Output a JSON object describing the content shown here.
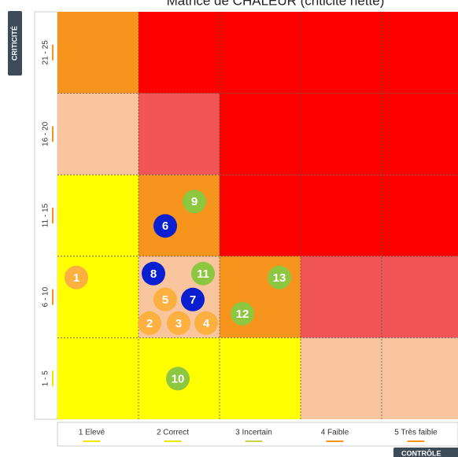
{
  "header": {
    "title": "Matrice de CHALEUR (criticité nette)"
  },
  "y_axis": {
    "title": "CRITICITÉ",
    "labels": [
      {
        "text": "21 - 25",
        "color": "#f7941d"
      },
      {
        "text": "16 - 20",
        "color": "#f7941d"
      },
      {
        "text": "11 - 15",
        "color": "#f7941d"
      },
      {
        "text": "6 - 10",
        "color": "#f7941d"
      },
      {
        "text": "1 - 5",
        "color": "#f2e600"
      }
    ]
  },
  "x_axis": {
    "title": "CONTRÔLE",
    "labels": [
      {
        "text": "1 Elevé",
        "color": "#f2e600"
      },
      {
        "text": "2 Correct",
        "color": "#e6e600"
      },
      {
        "text": "3 Incertain",
        "color": "#c8d44a"
      },
      {
        "text": "4 Faible",
        "color": "#f7941d"
      },
      {
        "text": "5 Très faible",
        "color": "#f7941d"
      }
    ]
  },
  "matrix": {
    "rows": [
      [
        {
          "color": "#f7941d",
          "markers": []
        },
        {
          "color": "#ff0000",
          "markers": []
        },
        {
          "color": "#ff0000",
          "markers": []
        },
        {
          "color": "#ff0000",
          "markers": []
        },
        {
          "color": "#ff0000",
          "markers": []
        }
      ],
      [
        {
          "color": "#f9c59f",
          "markers": []
        },
        {
          "color": "#f25555",
          "markers": []
        },
        {
          "color": "#ff0000",
          "markers": []
        },
        {
          "color": "#ff0000",
          "markers": []
        },
        {
          "color": "#ff0000",
          "markers": []
        }
      ],
      [
        {
          "color": "#ffff00",
          "markers": []
        },
        {
          "color": "#f7941d",
          "markers": [
            {
              "label": "9",
              "color": "#8dc63f"
            },
            {
              "label": "6",
              "color": "#0a1fd0"
            }
          ]
        },
        {
          "color": "#ff0000",
          "markers": []
        },
        {
          "color": "#ff0000",
          "markers": []
        },
        {
          "color": "#ff0000",
          "markers": []
        }
      ],
      [
        {
          "color": "#ffff00",
          "markers": [
            {
              "label": "1",
              "color": "#fbb040"
            }
          ]
        },
        {
          "color": "#f9c59f",
          "markers": [
            {
              "label": "8",
              "color": "#0a1fd0"
            },
            {
              "label": "11",
              "color": "#8dc63f"
            },
            {
              "label": "5",
              "color": "#fbb040"
            },
            {
              "label": "7",
              "color": "#0a1fd0"
            },
            {
              "label": "2",
              "color": "#fbb040"
            },
            {
              "label": "3",
              "color": "#fbb040"
            },
            {
              "label": "4",
              "color": "#fbb040"
            }
          ]
        },
        {
          "color": "#f7941d",
          "markers": [
            {
              "label": "13",
              "color": "#8dc63f"
            },
            {
              "label": "12",
              "color": "#8dc63f"
            }
          ]
        },
        {
          "color": "#f25555",
          "markers": []
        },
        {
          "color": "#f25555",
          "markers": []
        }
      ],
      [
        {
          "color": "#ffff00",
          "markers": []
        },
        {
          "color": "#ffff00",
          "markers": [
            {
              "label": "10",
              "color": "#8dc63f"
            }
          ]
        },
        {
          "color": "#ffff00",
          "markers": []
        },
        {
          "color": "#f9c59f",
          "markers": []
        },
        {
          "color": "#f9c59f",
          "markers": []
        }
      ]
    ]
  }
}
